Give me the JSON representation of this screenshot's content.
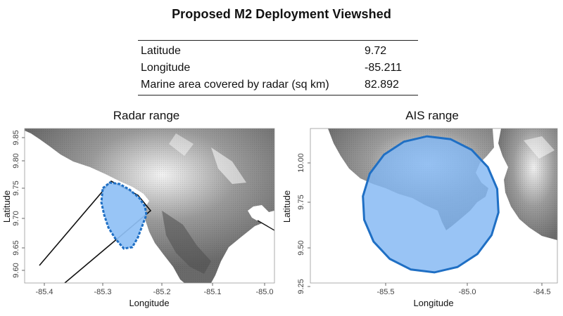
{
  "title": "Proposed M2 Deployment Viewshed",
  "summary_table": {
    "rows": [
      {
        "label": "Latitude",
        "value": "9.72"
      },
      {
        "label": "Longitude",
        "value": "-85.211"
      },
      {
        "label": "Marine area covered by radar (sq km)",
        "value": "82.892"
      }
    ]
  },
  "panels": [
    {
      "title": "Radar range",
      "xlabel": "Longitude",
      "ylabel": "Latitude",
      "x_ticks": [
        "-85.4",
        "-85.3",
        "-85.2",
        "-85.1",
        "-85.0"
      ],
      "y_ticks": [
        "9.60",
        "9.65",
        "9.70",
        "9.75",
        "9.80",
        "9.85"
      ],
      "coverage_color": "#3a86d8"
    },
    {
      "title": "AIS range",
      "xlabel": "Longitude",
      "ylabel": "Latitude",
      "x_ticks": [
        "-85.5",
        "-85.0",
        "-84.5"
      ],
      "y_ticks": [
        "9.25",
        "9.50",
        "9.75",
        "10.00"
      ],
      "coverage_color": "#3a86d8"
    }
  ],
  "colors": {
    "land_light": "#e8e8e8",
    "land_dark": "#5a5a5a",
    "sea": "#ffffff",
    "coverage_fill": "#8fc0f5",
    "coverage_stroke": "#1f6fc4"
  }
}
